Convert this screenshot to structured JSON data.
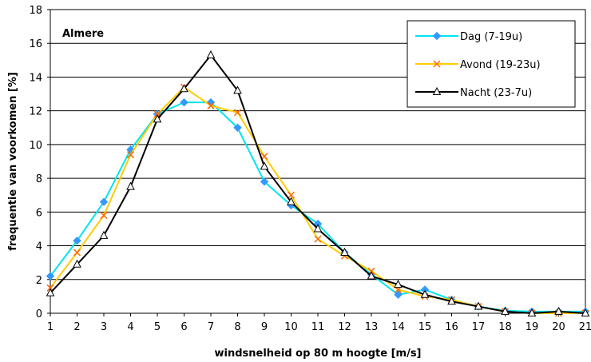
{
  "chart_data": {
    "type": "line",
    "title": "Almere",
    "xlabel": "windsnelheid op 80 m hoogte [m/s]",
    "ylabel": "frequentie van voorkomen [%]",
    "x": [
      1,
      2,
      3,
      4,
      5,
      6,
      7,
      8,
      9,
      10,
      11,
      12,
      13,
      14,
      15,
      16,
      17,
      18,
      19,
      20,
      21
    ],
    "xlim": [
      1,
      21
    ],
    "ylim": [
      0,
      18
    ],
    "yticks": [
      0,
      2,
      4,
      6,
      8,
      10,
      12,
      14,
      16,
      18
    ],
    "grid": true,
    "legend_position": "top-right",
    "series": [
      {
        "name": "Dag (7-19u)",
        "color": "#00e5ee",
        "marker": "diamond",
        "marker_color": "#3399ff",
        "values": [
          2.2,
          4.3,
          6.6,
          9.7,
          11.8,
          12.5,
          12.5,
          11.0,
          7.8,
          6.4,
          5.3,
          3.6,
          2.3,
          1.1,
          1.4,
          0.8,
          0.4,
          0.15,
          0.1,
          0.1,
          0.1
        ]
      },
      {
        "name": "Avond (19-23u)",
        "color": "#ffcc00",
        "marker": "x",
        "marker_color": "#ff6600",
        "values": [
          1.5,
          3.6,
          5.8,
          9.4,
          11.8,
          13.4,
          12.3,
          11.9,
          9.3,
          7.0,
          4.4,
          3.4,
          2.5,
          1.4,
          1.0,
          0.8,
          0.4,
          0.1,
          0.0,
          0.0,
          0.0
        ]
      },
      {
        "name": "Nacht (23-7u)",
        "color": "#000000",
        "marker": "triangle",
        "marker_color": "#000000",
        "values": [
          1.2,
          2.9,
          4.6,
          7.5,
          11.5,
          13.3,
          15.3,
          13.2,
          8.7,
          6.6,
          5.0,
          3.6,
          2.2,
          1.7,
          1.1,
          0.7,
          0.4,
          0.1,
          0.0,
          0.1,
          0.0
        ]
      }
    ]
  }
}
